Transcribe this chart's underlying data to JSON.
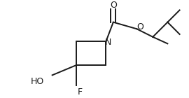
{
  "background_color": "#ffffff",
  "line_color": "#1a1a1a",
  "line_width": 1.4,
  "font_size": 8.5,
  "figsize": [
    2.7,
    1.4
  ],
  "dpi": 100,
  "xlim": [
    0,
    270
  ],
  "ylim": [
    0,
    140
  ]
}
